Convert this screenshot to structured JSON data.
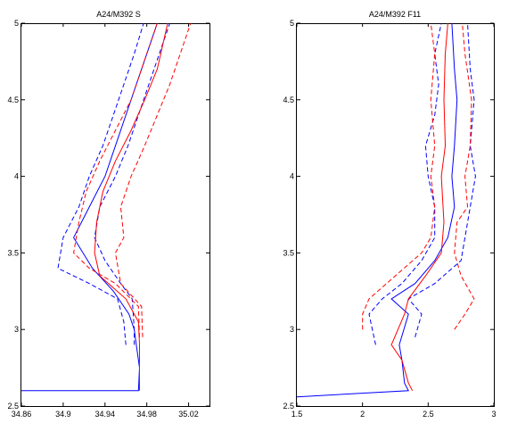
{
  "chart_data": [
    {
      "type": "line",
      "title": "A24/M392 S",
      "xlim": [
        34.86,
        35.04
      ],
      "ylim": [
        2.5,
        5
      ],
      "xticks": [
        34.86,
        34.9,
        34.94,
        34.98,
        35.02
      ],
      "xtick_labels": [
        "34.86",
        "34.9",
        "34.94",
        "34.98",
        "35.02"
      ],
      "yticks": [
        2.5,
        3,
        3.5,
        4,
        4.5,
        5
      ],
      "ytick_labels": [
        "2.5",
        "3",
        "3.5",
        "4",
        "4.5",
        "5"
      ],
      "grid": false,
      "colors": {
        "blue": "#0000ff",
        "red": "#ff0000"
      },
      "series": [
        {
          "color": "blue",
          "style": "solid",
          "points": [
            [
              34.86,
              2.6
            ],
            [
              34.972,
              2.6
            ],
            [
              34.973,
              2.75
            ],
            [
              34.97,
              2.9
            ],
            [
              34.968,
              3.0
            ],
            [
              34.963,
              3.1
            ],
            [
              34.948,
              3.25
            ],
            [
              34.928,
              3.4
            ],
            [
              34.91,
              3.6
            ],
            [
              34.925,
              3.8
            ],
            [
              34.94,
              4.0
            ],
            [
              34.95,
              4.2
            ],
            [
              34.96,
              4.4
            ],
            [
              34.97,
              4.6
            ],
            [
              34.98,
              4.8
            ],
            [
              34.99,
              5.0
            ]
          ]
        },
        {
          "color": "blue",
          "style": "dashed",
          "points": [
            [
              34.96,
              2.9
            ],
            [
              34.958,
              3.05
            ],
            [
              34.952,
              3.2
            ],
            [
              34.925,
              3.3
            ],
            [
              34.895,
              3.4
            ],
            [
              34.9,
              3.6
            ],
            [
              34.915,
              3.8
            ],
            [
              34.925,
              4.0
            ],
            [
              34.938,
              4.2
            ],
            [
              34.948,
              4.4
            ],
            [
              34.958,
              4.6
            ],
            [
              34.968,
              4.8
            ],
            [
              34.977,
              5.0
            ]
          ]
        },
        {
          "color": "blue",
          "style": "dashed",
          "points": [
            [
              34.968,
              2.9
            ],
            [
              34.968,
              3.0
            ],
            [
              34.966,
              3.2
            ],
            [
              34.955,
              3.3
            ],
            [
              34.94,
              3.45
            ],
            [
              34.93,
              3.6
            ],
            [
              34.935,
              3.8
            ],
            [
              34.95,
              4.0
            ],
            [
              34.962,
              4.2
            ],
            [
              34.972,
              4.4
            ],
            [
              34.982,
              4.6
            ],
            [
              34.992,
              4.8
            ],
            [
              35.002,
              5.0
            ]
          ]
        },
        {
          "color": "red",
          "style": "solid",
          "points": [
            [
              34.973,
              2.6
            ],
            [
              34.973,
              2.9
            ],
            [
              34.972,
              3.05
            ],
            [
              34.96,
              3.2
            ],
            [
              34.935,
              3.35
            ],
            [
              34.93,
              3.5
            ],
            [
              34.932,
              3.7
            ],
            [
              34.938,
              3.9
            ],
            [
              34.95,
              4.1
            ],
            [
              34.965,
              4.3
            ],
            [
              34.978,
              4.5
            ],
            [
              34.99,
              4.7
            ],
            [
              35.0,
              5.0
            ]
          ]
        },
        {
          "color": "red",
          "style": "dashed",
          "points": [
            [
              34.973,
              2.95
            ],
            [
              34.972,
              3.15
            ],
            [
              34.95,
              3.3
            ],
            [
              34.925,
              3.4
            ],
            [
              34.91,
              3.5
            ],
            [
              34.915,
              3.7
            ],
            [
              34.922,
              3.9
            ],
            [
              34.935,
              4.1
            ],
            [
              34.95,
              4.3
            ],
            [
              34.965,
              4.5
            ],
            [
              34.975,
              4.7
            ],
            [
              34.985,
              4.9
            ],
            [
              34.99,
              5.0
            ]
          ]
        },
        {
          "color": "red",
          "style": "dashed",
          "points": [
            [
              34.976,
              2.95
            ],
            [
              34.975,
              3.15
            ],
            [
              34.955,
              3.3
            ],
            [
              34.95,
              3.5
            ],
            [
              34.958,
              3.6
            ],
            [
              34.955,
              3.8
            ],
            [
              34.965,
              4.0
            ],
            [
              34.978,
              4.2
            ],
            [
              34.99,
              4.4
            ],
            [
              35.002,
              4.6
            ],
            [
              35.012,
              4.8
            ],
            [
              35.022,
              5.0
            ]
          ]
        }
      ]
    },
    {
      "type": "line",
      "title": "A24/M392 F11",
      "xlim": [
        1.5,
        3.0
      ],
      "ylim": [
        2.5,
        5
      ],
      "xticks": [
        1.5,
        2.0,
        2.5,
        3.0
      ],
      "xtick_labels": [
        "1.5",
        "2",
        "2.5",
        "3"
      ],
      "yticks": [
        2.5,
        3,
        3.5,
        4,
        4.5,
        5
      ],
      "ytick_labels": [
        "2.5",
        "3",
        "3.5",
        "4",
        "4.5",
        "5"
      ],
      "grid": false,
      "colors": {
        "blue": "#0000ff",
        "red": "#ff0000"
      },
      "series": [
        {
          "color": "blue",
          "style": "solid",
          "points": [
            [
              1.5,
              2.56
            ],
            [
              2.35,
              2.6
            ],
            [
              2.32,
              2.65
            ],
            [
              2.3,
              2.8
            ],
            [
              2.28,
              2.9
            ],
            [
              2.35,
              3.1
            ],
            [
              2.22,
              3.2
            ],
            [
              2.4,
              3.3
            ],
            [
              2.55,
              3.45
            ],
            [
              2.65,
              3.6
            ],
            [
              2.7,
              3.8
            ],
            [
              2.68,
              4.0
            ],
            [
              2.7,
              4.2
            ],
            [
              2.72,
              4.5
            ],
            [
              2.7,
              4.7
            ],
            [
              2.68,
              5.0
            ]
          ]
        },
        {
          "color": "blue",
          "style": "dashed",
          "points": [
            [
              2.1,
              2.9
            ],
            [
              2.05,
              3.1
            ],
            [
              2.15,
              3.2
            ],
            [
              2.3,
              3.3
            ],
            [
              2.45,
              3.45
            ],
            [
              2.55,
              3.6
            ],
            [
              2.55,
              3.8
            ],
            [
              2.5,
              4.0
            ],
            [
              2.48,
              4.2
            ],
            [
              2.55,
              4.4
            ],
            [
              2.58,
              4.6
            ],
            [
              2.55,
              4.8
            ],
            [
              2.6,
              5.0
            ]
          ]
        },
        {
          "color": "blue",
          "style": "dashed",
          "points": [
            [
              2.4,
              2.95
            ],
            [
              2.45,
              3.1
            ],
            [
              2.35,
              3.2
            ],
            [
              2.55,
              3.3
            ],
            [
              2.75,
              3.45
            ],
            [
              2.78,
              3.6
            ],
            [
              2.82,
              3.8
            ],
            [
              2.86,
              4.0
            ],
            [
              2.82,
              4.2
            ],
            [
              2.85,
              4.5
            ],
            [
              2.82,
              4.7
            ],
            [
              2.8,
              5.0
            ]
          ]
        },
        {
          "color": "red",
          "style": "solid",
          "points": [
            [
              2.38,
              2.6
            ],
            [
              2.35,
              2.65
            ],
            [
              2.3,
              2.8
            ],
            [
              2.22,
              2.9
            ],
            [
              2.32,
              3.1
            ],
            [
              2.35,
              3.2
            ],
            [
              2.48,
              3.35
            ],
            [
              2.6,
              3.5
            ],
            [
              2.62,
              3.7
            ],
            [
              2.6,
              4.0
            ],
            [
              2.63,
              4.2
            ],
            [
              2.62,
              4.5
            ],
            [
              2.63,
              4.8
            ],
            [
              2.65,
              5.0
            ]
          ]
        },
        {
          "color": "red",
          "style": "dashed",
          "points": [
            [
              2.0,
              3.0
            ],
            [
              2.0,
              3.1
            ],
            [
              2.05,
              3.2
            ],
            [
              2.25,
              3.35
            ],
            [
              2.45,
              3.5
            ],
            [
              2.52,
              3.6
            ],
            [
              2.55,
              3.8
            ],
            [
              2.52,
              4.0
            ],
            [
              2.55,
              4.2
            ],
            [
              2.52,
              4.5
            ],
            [
              2.55,
              4.8
            ],
            [
              2.52,
              5.0
            ]
          ]
        },
        {
          "color": "red",
          "style": "dashed",
          "points": [
            [
              2.7,
              3.0
            ],
            [
              2.78,
              3.1
            ],
            [
              2.85,
              3.2
            ],
            [
              2.75,
              3.35
            ],
            [
              2.7,
              3.5
            ],
            [
              2.72,
              3.7
            ],
            [
              2.8,
              3.8
            ],
            [
              2.78,
              4.0
            ],
            [
              2.82,
              4.2
            ],
            [
              2.83,
              4.5
            ],
            [
              2.78,
              4.8
            ],
            [
              2.76,
              5.0
            ]
          ]
        }
      ]
    }
  ]
}
